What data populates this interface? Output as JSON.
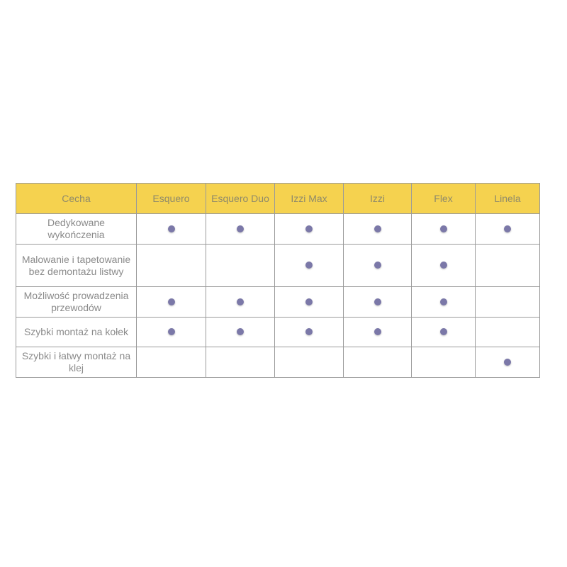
{
  "colors": {
    "header": "#f5d24f",
    "dot": "#7b78a8"
  },
  "columns": [
    "Cecha",
    "Esquero",
    "Esquero Duo",
    "Izzi Max",
    "Izzi",
    "Flex",
    "Linela"
  ],
  "rows": [
    {
      "feature": "Dedykowane wykończenia",
      "marks": [
        true,
        true,
        true,
        true,
        true,
        true
      ]
    },
    {
      "feature": "Malowanie i tapetowanie bez demontażu listwy",
      "marks": [
        false,
        false,
        true,
        true,
        true,
        false
      ]
    },
    {
      "feature": "Możliwość prowadzenia przewodów",
      "marks": [
        true,
        true,
        true,
        true,
        true,
        false
      ]
    },
    {
      "feature": "Szybki montaż na kołek",
      "marks": [
        true,
        true,
        true,
        true,
        true,
        false
      ]
    },
    {
      "feature": "Szybki i łatwy montaż na klej",
      "marks": [
        false,
        false,
        false,
        false,
        false,
        true
      ]
    }
  ]
}
